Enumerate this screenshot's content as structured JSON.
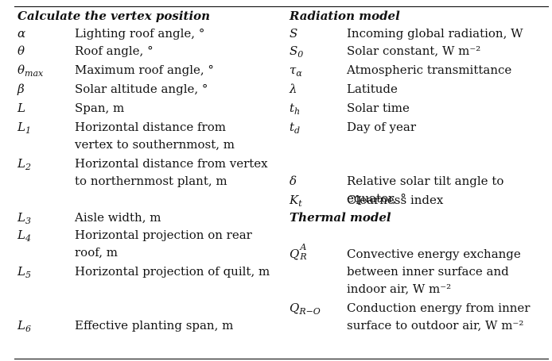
{
  "left_column": {
    "header": "Calculate the vertex position",
    "rows": [
      {
        "symbol": "α",
        "description": "Lighting roof angle, °"
      },
      {
        "symbol": "θ",
        "description": "Roof angle, °"
      },
      {
        "symbol": "θ",
        "symbol_sub": "max",
        "description": "Maximum roof angle, °"
      },
      {
        "symbol": "β",
        "description": "Solar altitude angle, °"
      },
      {
        "symbol": "L",
        "description": "Span, m"
      },
      {
        "symbol": "L",
        "symbol_sub": "1",
        "description": "Horizontal distance from vertex to southernmost, m"
      },
      {
        "symbol": "L",
        "symbol_sub": "2",
        "description": "Horizontal distance from vertex to northernmost plant, m"
      },
      {
        "symbol": "L",
        "symbol_sub": "3",
        "description": "Aisle width, m"
      },
      {
        "symbol": "L",
        "symbol_sub": "4",
        "description": "Horizontal projection on rear roof, m"
      },
      {
        "symbol": "L",
        "symbol_sub": "5",
        "description": "Horizontal projection of quilt, m"
      },
      {
        "symbol": "L",
        "symbol_sub": "6",
        "description": "Effective planting span, m"
      }
    ]
  },
  "right_column": {
    "header_radiation": "Radiation model",
    "radiation_rows": [
      {
        "symbol": "S",
        "description": "Incoming global radiation, W"
      },
      {
        "symbol": "S",
        "symbol_sub": "0",
        "description": "Solar constant, W m⁻²"
      },
      {
        "symbol": "τ",
        "symbol_sub": "α",
        "description": "Atmospheric transmittance"
      },
      {
        "symbol": "λ",
        "description": "Latitude"
      },
      {
        "symbol": "t",
        "symbol_sub": "h",
        "description": "Solar time"
      },
      {
        "symbol": "t",
        "symbol_sub": "d",
        "description": "Day of year"
      },
      {
        "symbol": "δ",
        "description": "Relative solar tilt angle to equator, °"
      },
      {
        "symbol": "K",
        "symbol_sub": "t",
        "description": "Clearness index"
      }
    ],
    "header_thermal": "Thermal model",
    "thermal_rows": [
      {
        "symbol": "Q",
        "symbol_sup": "A",
        "symbol_sub": "R",
        "description": "Convective energy exchange between inner surface and indoor air, W m⁻²"
      },
      {
        "symbol": "Q",
        "symbol_sub": "R−O",
        "description": "Conduction energy from inner surface to outdoor air, W m⁻²"
      }
    ]
  }
}
